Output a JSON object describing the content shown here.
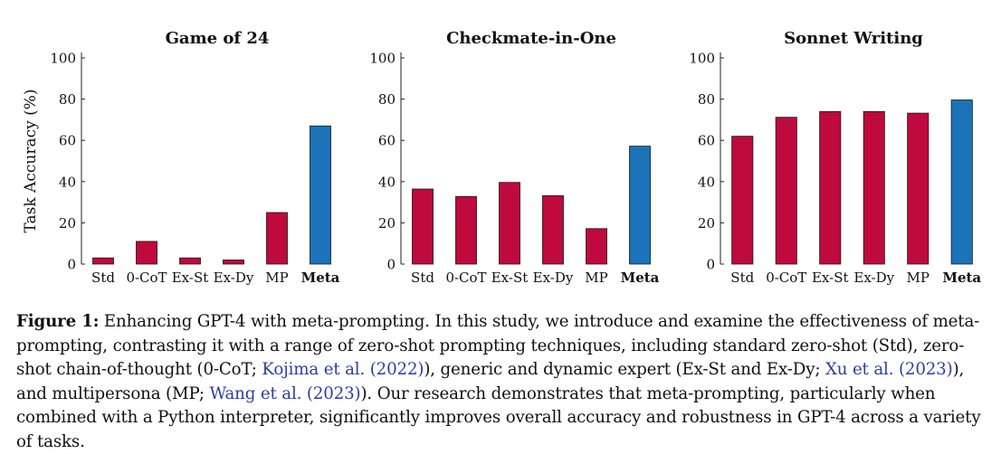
{
  "colors": {
    "bar_default": "#be0a3c",
    "bar_highlight": "#1a73b8",
    "axis": "#222222",
    "text": "#111111",
    "cite": "#2b3ea6"
  },
  "chart_data": [
    {
      "type": "bar",
      "title": "Game of 24",
      "ylabel": "Task Accuracy (%)",
      "xlabel": "",
      "categories": [
        "Std",
        "0-CoT",
        "Ex-St",
        "Ex-Dy",
        "MP",
        "Meta"
      ],
      "values": [
        3,
        11,
        3,
        2,
        25,
        67
      ],
      "highlight": "Meta",
      "ylim": [
        0,
        100
      ],
      "yticks": [
        0,
        20,
        40,
        60,
        80,
        100
      ]
    },
    {
      "type": "bar",
      "title": "Checkmate-in-One",
      "ylabel": "",
      "xlabel": "",
      "categories": [
        "Std",
        "0-CoT",
        "Ex-St",
        "Ex-Dy",
        "MP",
        "Meta"
      ],
      "values": [
        36.4,
        32.8,
        39.6,
        33.2,
        17.2,
        57.2
      ],
      "highlight": "Meta",
      "ylim": [
        0,
        100
      ],
      "yticks": [
        0,
        20,
        40,
        60,
        80,
        100
      ]
    },
    {
      "type": "bar",
      "title": "Sonnet Writing",
      "ylabel": "",
      "xlabel": "",
      "categories": [
        "Std",
        "0-CoT",
        "Ex-St",
        "Ex-Dy",
        "MP",
        "Meta"
      ],
      "values": [
        62,
        71.2,
        74,
        74,
        73.2,
        79.6
      ],
      "highlight": "Meta",
      "ylim": [
        0,
        100
      ],
      "yticks": [
        0,
        20,
        40,
        60,
        80,
        100
      ]
    }
  ],
  "caption": {
    "label": "Figure 1:",
    "part1": " Enhancing GPT-4 with meta-prompting. In this study, we introduce and examine the effectiveness of meta-prompting, contrasting it with a range of zero-shot prompting techniques, including standard zero-shot (Std), zero-shot chain-of-thought (0-CoT; ",
    "cite1": "Kojima et al. (2022)",
    "part2": "), generic and dynamic expert (Ex-St and Ex-Dy; ",
    "cite2": "Xu et al. (2023)",
    "part3": "), and multipersona (MP; ",
    "cite3": "Wang et al. (2023)",
    "part4": "). Our research demonstrates that meta-prompting, particularly when combined with a Python interpreter, significantly improves overall accuracy and robustness in GPT-4 across a variety of tasks."
  }
}
